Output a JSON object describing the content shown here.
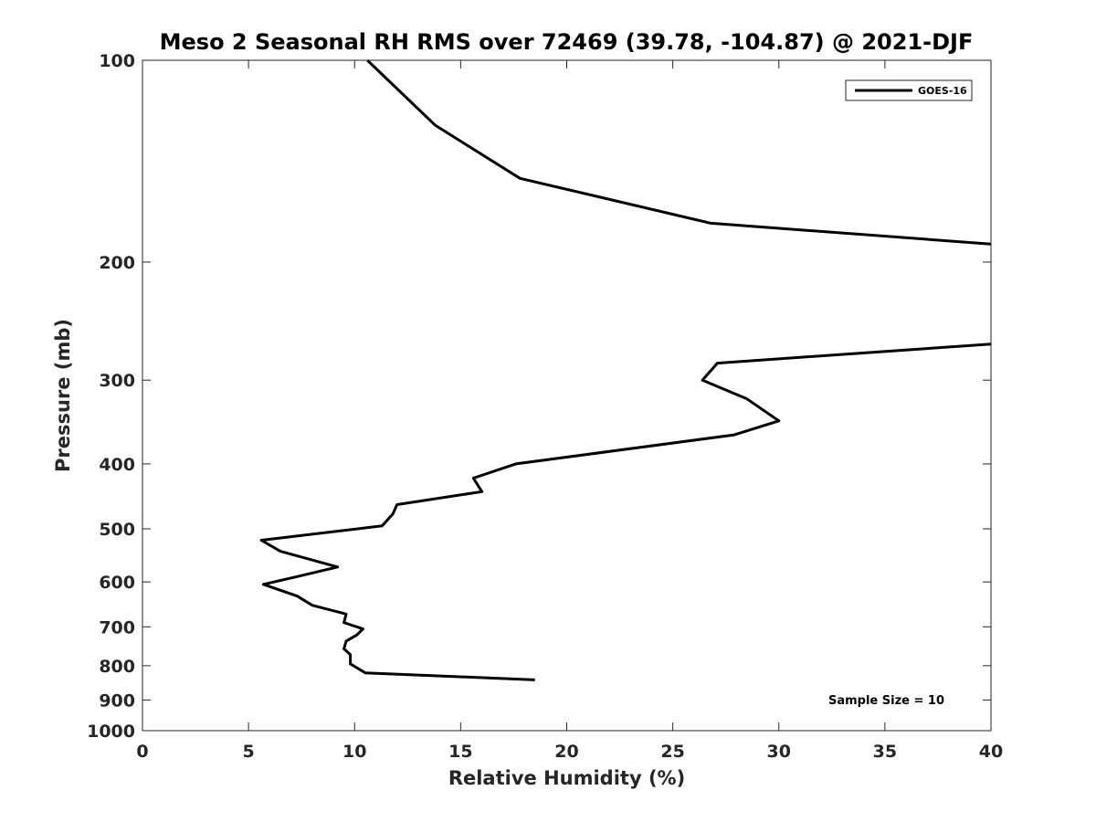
{
  "chart_data": {
    "type": "line",
    "title": "Meso 2 Seasonal RH RMS over 72469 (39.78, -104.87) @ 2021-DJF",
    "xlabel": "Relative Humidity (%)",
    "ylabel": "Pressure (mb)",
    "xlim": [
      0,
      40
    ],
    "ylim": [
      100,
      1000
    ],
    "yscale": "log",
    "y_reversed": true,
    "grid": false,
    "x_ticks": [
      0,
      5,
      10,
      15,
      20,
      25,
      30,
      35,
      40
    ],
    "x_tick_labels": [
      "0",
      "5",
      "10",
      "15",
      "20",
      "25",
      "30",
      "35",
      "40"
    ],
    "y_ticks": [
      100,
      200,
      300,
      400,
      500,
      600,
      700,
      800,
      900,
      1000
    ],
    "y_tick_labels": [
      "100",
      "200",
      "300",
      "400",
      "500",
      "600",
      "700",
      "800",
      "900",
      "1000"
    ],
    "legend": {
      "entries": [
        "GOES-16"
      ],
      "location": "top-right"
    },
    "annotation": "Sample Size = 10",
    "series": [
      {
        "name": "GOES-16",
        "color": "#000000",
        "segments": [
          {
            "x": [
              10.6,
              13.8,
              17.8,
              26.8,
              40.0
            ],
            "y": [
              100,
              125,
              150,
              175,
              188
            ]
          },
          {
            "x": [
              40.0,
              27.1,
              26.4,
              28.5,
              30.0,
              27.9,
              17.6,
              15.6,
              16.0,
              12.0,
              11.8,
              11.3,
              5.6,
              6.5,
              9.2,
              7.2,
              5.7,
              7.3,
              8.0,
              9.6,
              9.5,
              10.4,
              10.1,
              9.6,
              9.5,
              9.8,
              9.8,
              10.5,
              18.5
            ],
            "y": [
              265,
              283,
              300,
              320,
              345,
              362,
              400,
              420,
              440,
              460,
              475,
              495,
              520,
              540,
              570,
              590,
              605,
              630,
              650,
              670,
              690,
              705,
              720,
              735,
              755,
              770,
              795,
              820,
              840
            ]
          }
        ]
      }
    ]
  }
}
